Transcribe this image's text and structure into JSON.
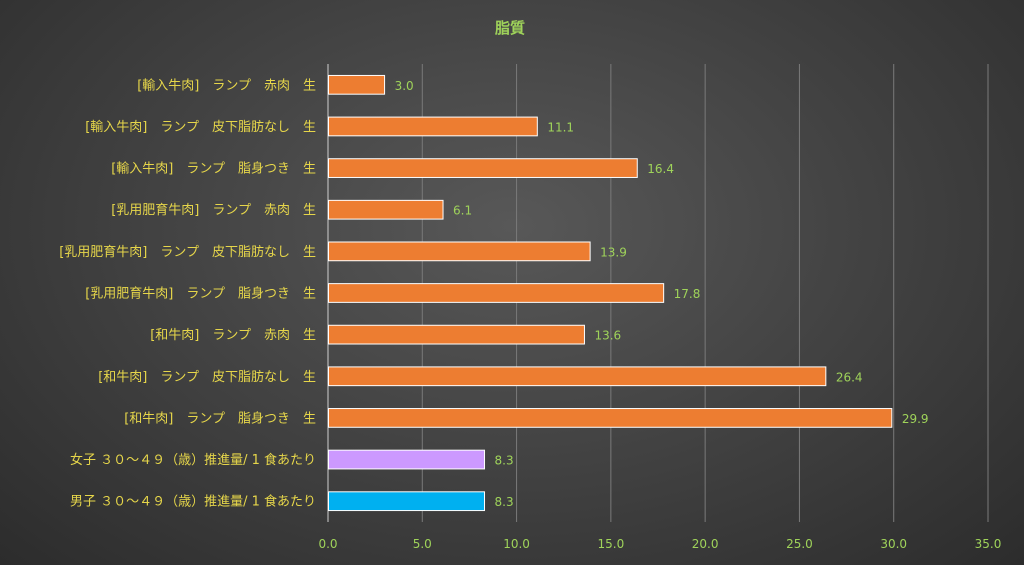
{
  "chart_data": {
    "type": "bar",
    "orientation": "horizontal",
    "title": "脂質",
    "xlabel": "",
    "ylabel": "",
    "xlim": [
      0,
      35
    ],
    "x_ticks": [
      "0.0",
      "5.0",
      "10.0",
      "15.0",
      "20.0",
      "25.0",
      "30.0",
      "35.0"
    ],
    "grid": true,
    "legend": "none",
    "categories": [
      "[輸入牛肉]　ランプ　赤肉　生",
      "[輸入牛肉]　ランプ　皮下脂肪なし　生",
      "[輸入牛肉]　ランプ　脂身つき　生",
      "[乳用肥育牛肉]　ランプ　赤肉　生",
      "[乳用肥育牛肉]　ランプ　皮下脂肪なし　生",
      "[乳用肥育牛肉]　ランプ　脂身つき　生",
      "[和牛肉]　ランプ　赤肉　生",
      "[和牛肉]　ランプ　皮下脂肪なし　生",
      "[和牛肉]　ランプ　脂身つき　生",
      "女子 ３０～４９（歳）推進量/ 1 食あたり",
      "男子 ３０～４９（歳）推進量/ 1 食あたり"
    ],
    "values": [
      3.0,
      11.1,
      16.4,
      6.1,
      13.9,
      17.8,
      13.6,
      26.4,
      29.9,
      8.3,
      8.3
    ],
    "value_labels": [
      "3.0",
      "11.1",
      "16.4",
      "6.1",
      "13.9",
      "17.8",
      "13.6",
      "26.4",
      "29.9",
      "8.3",
      "8.3"
    ],
    "colors": [
      "#ed7d31",
      "#ed7d31",
      "#ed7d31",
      "#ed7d31",
      "#ed7d31",
      "#ed7d31",
      "#ed7d31",
      "#ed7d31",
      "#ed7d31",
      "#cc99ff",
      "#00b0f0"
    ]
  }
}
